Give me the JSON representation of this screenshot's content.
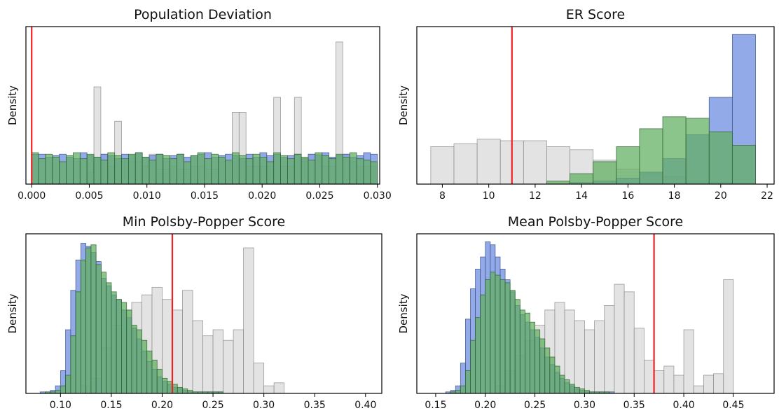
{
  "colors": {
    "grey": "#d9d9d9",
    "blue": "#6f8ee0",
    "green": "#5fae5f",
    "overlap": "#3f8a68",
    "enacted_line": "#ee2222"
  },
  "chart_data": [
    {
      "type": "bar",
      "subtype": "overlaid-histogram",
      "title": "Population Deviation",
      "ylabel": "Density",
      "xlim": [
        -0.0005,
        0.0302
      ],
      "ylim": [
        0,
        1
      ],
      "xticks": [
        0,
        0.005,
        0.01,
        0.015,
        0.02,
        0.025,
        0.03
      ],
      "xtick_labels": [
        "0.000",
        "0.005",
        "0.010",
        "0.015",
        "0.020",
        "0.025",
        "0.030"
      ],
      "enacted_value": 0.0,
      "series": [
        {
          "color": "grey",
          "bin_start": 0.0,
          "bin_width": 0.0006,
          "values": [
            0,
            0,
            0,
            0,
            0,
            0,
            0,
            0,
            0.08,
            0.65,
            0.2,
            0.12,
            0.42,
            0.15,
            0.15,
            0.15,
            0.12,
            0.2,
            0.1,
            0.1,
            0.12,
            0.1,
            0.1,
            0.12,
            0.12,
            0.1,
            0.1,
            0.15,
            0.15,
            0.48,
            0.48,
            0.12,
            0.12,
            0.12,
            0.12,
            0.58,
            0.12,
            0.12,
            0.58,
            0.15,
            0.2,
            0.2,
            0.12,
            0.12,
            0.95,
            0.2,
            0.15,
            0.12,
            0.12,
            0.12
          ]
        },
        {
          "color": "blue",
          "bin_start": 0.0,
          "bin_width": 0.0006,
          "values": [
            0.2,
            0.2,
            0.18,
            0.19,
            0.2,
            0.18,
            0.17,
            0.21,
            0.19,
            0.18,
            0.2,
            0.19,
            0.17,
            0.2,
            0.19,
            0.21,
            0.18,
            0.19,
            0.2,
            0.17,
            0.19,
            0.2,
            0.18,
            0.19,
            0.2,
            0.21,
            0.18,
            0.19,
            0.2,
            0.19,
            0.17,
            0.2,
            0.18,
            0.21,
            0.19,
            0.2,
            0.18,
            0.19,
            0.2,
            0.17,
            0.2,
            0.19,
            0.21,
            0.18,
            0.19,
            0.2,
            0.18,
            0.19,
            0.21,
            0.2
          ]
        },
        {
          "color": "green",
          "bin_start": 0.0,
          "bin_width": 0.0006,
          "values": [
            0.21,
            0.17,
            0.2,
            0.18,
            0.15,
            0.19,
            0.21,
            0.17,
            0.2,
            0.18,
            0.16,
            0.21,
            0.19,
            0.17,
            0.2,
            0.21,
            0.18,
            0.16,
            0.2,
            0.19,
            0.17,
            0.2,
            0.15,
            0.19,
            0.21,
            0.17,
            0.2,
            0.18,
            0.16,
            0.21,
            0.19,
            0.17,
            0.2,
            0.18,
            0.15,
            0.21,
            0.19,
            0.17,
            0.2,
            0.18,
            0.16,
            0.21,
            0.19,
            0.17,
            0.2,
            0.18,
            0.21,
            0.17,
            0.16,
            0.15
          ]
        }
      ]
    },
    {
      "type": "bar",
      "subtype": "overlaid-histogram",
      "title": "ER Score",
      "ylabel": "Density",
      "xlim": [
        6.9,
        22.3
      ],
      "ylim": [
        0,
        1
      ],
      "xticks": [
        8,
        10,
        12,
        14,
        16,
        18,
        20,
        22
      ],
      "xtick_labels": [
        "8",
        "10",
        "12",
        "14",
        "16",
        "18",
        "20",
        "22"
      ],
      "enacted_value": 11,
      "series": [
        {
          "color": "grey",
          "bin_start": 7.5,
          "bin_width": 1,
          "values": [
            0.25,
            0.27,
            0.3,
            0.29,
            0.29,
            0.25,
            0.23,
            0.16,
            0.1,
            0.07,
            0.05,
            0.02,
            0.01,
            0.0
          ]
        },
        {
          "color": "blue",
          "bin_start": 7.5,
          "bin_width": 1,
          "values": [
            0,
            0,
            0,
            0,
            0,
            0,
            0.01,
            0.02,
            0.04,
            0.08,
            0.17,
            0.33,
            0.58,
            1.0
          ]
        },
        {
          "color": "green",
          "bin_start": 7.5,
          "bin_width": 1,
          "values": [
            0,
            0,
            0,
            0,
            0,
            0.02,
            0.07,
            0.15,
            0.25,
            0.37,
            0.45,
            0.44,
            0.35,
            0.26
          ]
        }
      ]
    },
    {
      "type": "bar",
      "subtype": "overlaid-histogram",
      "title": "Min Polsby-Popper Score",
      "ylabel": "Density",
      "xlim": [
        0.066,
        0.416
      ],
      "ylim": [
        0,
        1
      ],
      "xticks": [
        0.1,
        0.15,
        0.2,
        0.25,
        0.3,
        0.35,
        0.4
      ],
      "xtick_labels": [
        "0.10",
        "0.15",
        "0.20",
        "0.25",
        "0.30",
        "0.35",
        "0.40"
      ],
      "enacted_value": 0.21,
      "series": [
        {
          "color": "grey",
          "bin_start": 0.08,
          "bin_width": 0.01,
          "values": [
            0,
            0,
            0,
            0,
            0.05,
            0.1,
            0.3,
            0.45,
            0.55,
            0.6,
            0.65,
            0.7,
            0.62,
            0.55,
            0.68,
            0.48,
            0.38,
            0.42,
            0.35,
            0.42,
            0.96,
            0.2,
            0.05,
            0.07,
            0,
            0,
            0,
            0,
            0,
            0,
            0,
            0
          ]
        },
        {
          "color": "blue",
          "bin_start": 0.06,
          "bin_width": 0.005,
          "values": [
            0,
            0,
            0,
            0,
            0.01,
            0.01,
            0.02,
            0.05,
            0.15,
            0.42,
            0.68,
            0.88,
            0.99,
            0.97,
            0.93,
            0.87,
            0.76,
            0.71,
            0.65,
            0.62,
            0.55,
            0.5,
            0.43,
            0.36,
            0.28,
            0.21,
            0.16,
            0.11,
            0.08,
            0.06,
            0.04,
            0.03,
            0.02,
            0.01,
            0.01,
            0.01,
            0.01,
            0.01,
            0.01,
            0.01
          ]
        },
        {
          "color": "green",
          "bin_start": 0.06,
          "bin_width": 0.005,
          "values": [
            0,
            0,
            0,
            0,
            0,
            0.01,
            0.01,
            0.02,
            0.05,
            0.12,
            0.38,
            0.67,
            0.88,
            0.96,
            0.98,
            0.85,
            0.8,
            0.73,
            0.67,
            0.62,
            0.6,
            0.55,
            0.45,
            0.42,
            0.35,
            0.28,
            0.22,
            0.16,
            0.1,
            0.08,
            0.06,
            0.04,
            0.03,
            0.02,
            0.01,
            0.01,
            0.01,
            0.01,
            0.01,
            0.01
          ]
        }
      ]
    },
    {
      "type": "bar",
      "subtype": "overlaid-histogram",
      "title": "Mean Polsby-Popper Score",
      "ylabel": "Density",
      "xlim": [
        0.131,
        0.491
      ],
      "ylim": [
        0,
        1
      ],
      "xticks": [
        0.15,
        0.2,
        0.25,
        0.3,
        0.35,
        0.4,
        0.45
      ],
      "xtick_labels": [
        "0.15",
        "0.20",
        "0.25",
        "0.30",
        "0.35",
        "0.40",
        "0.45"
      ],
      "enacted_value": 0.37,
      "series": [
        {
          "color": "grey",
          "bin_start": 0.19,
          "bin_width": 0.01,
          "values": [
            0,
            0,
            0.05,
            0.15,
            0.25,
            0.35,
            0.45,
            0.55,
            0.6,
            0.55,
            0.48,
            0.42,
            0.48,
            0.58,
            0.72,
            0.67,
            0.43,
            0.22,
            0.15,
            0.18,
            0.12,
            0.42,
            0.05,
            0.12,
            0.13,
            0.75,
            0,
            0,
            0
          ]
        },
        {
          "color": "blue",
          "bin_start": 0.15,
          "bin_width": 0.005,
          "values": [
            0,
            0,
            0.01,
            0.02,
            0.05,
            0.2,
            0.49,
            0.69,
            0.82,
            0.9,
            1.0,
            0.98,
            0.9,
            0.82,
            0.75,
            0.67,
            0.58,
            0.52,
            0.47,
            0.42,
            0.37,
            0.3,
            0.24,
            0.19,
            0.14,
            0.1,
            0.07,
            0.05,
            0.03,
            0.02,
            0.01,
            0.01,
            0.01,
            0.01,
            0.01,
            0.01,
            0.0,
            0.0,
            0.0,
            0.0
          ]
        },
        {
          "color": "green",
          "bin_start": 0.15,
          "bin_width": 0.005,
          "values": [
            0,
            0,
            0,
            0.01,
            0.02,
            0.05,
            0.15,
            0.35,
            0.5,
            0.65,
            0.75,
            0.8,
            0.78,
            0.75,
            0.73,
            0.68,
            0.62,
            0.55,
            0.53,
            0.47,
            0.42,
            0.36,
            0.3,
            0.24,
            0.18,
            0.12,
            0.09,
            0.06,
            0.04,
            0.03,
            0.02,
            0.01,
            0.01,
            0.01,
            0.01,
            0.0,
            0.0,
            0.0,
            0.0,
            0.0
          ]
        }
      ]
    }
  ]
}
